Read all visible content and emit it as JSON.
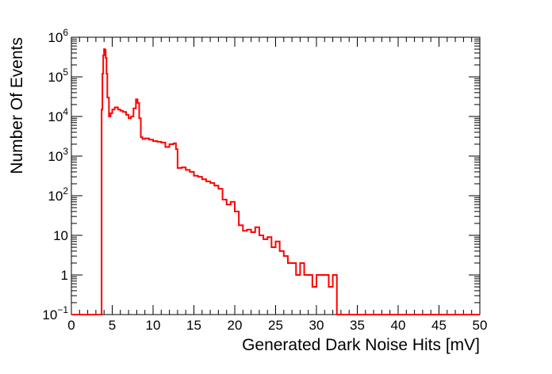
{
  "chart_data": {
    "type": "histogram",
    "title": "",
    "xlabel": "Generated Dark Noise Hits [mV]",
    "ylabel": "Number Of Events",
    "xlim": [
      0,
      50
    ],
    "ylim": [
      0.1,
      1000000
    ],
    "y_scale": "log",
    "grid": false,
    "legend": "none",
    "line_color": "#ff0000",
    "x_ticks": [
      0,
      5,
      10,
      15,
      20,
      25,
      30,
      35,
      40,
      45,
      50
    ],
    "x_tick_labels": [
      "0",
      "5",
      "10",
      "15",
      "20",
      "25",
      "30",
      "35",
      "40",
      "45",
      "50"
    ],
    "y_tick_labels": [
      {
        "value": 0.1,
        "base": "10",
        "exp": "−1"
      },
      {
        "value": 1,
        "base": "1",
        "exp": ""
      },
      {
        "value": 10,
        "base": "10",
        "exp": ""
      },
      {
        "value": 100,
        "base": "10",
        "exp": "2"
      },
      {
        "value": 1000,
        "base": "10",
        "exp": "3"
      },
      {
        "value": 10000,
        "base": "10",
        "exp": "4"
      },
      {
        "value": 100000,
        "base": "10",
        "exp": "5"
      },
      {
        "value": 1000000,
        "base": "10",
        "exp": "6"
      }
    ],
    "series": [
      {
        "x": [
          3.7,
          3.8,
          3.9,
          4.0,
          4.1,
          4.2,
          4.3,
          4.4,
          4.6,
          4.8,
          5.0,
          5.3,
          5.7,
          6.0,
          6.3,
          6.7,
          7.0,
          7.3,
          7.6,
          7.9,
          8.1,
          8.3,
          8.5,
          8.7,
          9.0,
          9.5,
          10.0,
          10.5,
          11.0,
          11.5,
          12.0,
          12.5,
          12.8,
          13.0,
          13.5,
          14.0,
          14.5,
          15.0,
          15.5,
          16.0,
          16.5,
          17.0,
          17.5,
          18.0,
          18.5,
          19.0,
          19.5,
          20.0,
          20.5,
          21.0,
          21.5,
          22.0,
          22.5,
          23.0,
          23.5,
          24.0,
          24.5,
          25.0,
          25.5,
          26.0,
          26.5,
          27.0,
          27.5,
          28.0,
          28.5,
          29.0,
          29.5,
          30.0,
          30.5,
          31.0,
          31.5,
          32.0
        ],
        "values": [
          15000,
          120000,
          350000,
          500000,
          480000,
          300000,
          120000,
          30000,
          10000,
          12000,
          15000,
          17000,
          15000,
          14000,
          13000,
          11000,
          9000,
          10000,
          16000,
          27000,
          22000,
          9000,
          3000,
          2700,
          2800,
          2600,
          2400,
          2300,
          2200,
          1700,
          2000,
          2100,
          1500,
          500,
          520,
          450,
          400,
          320,
          300,
          260,
          230,
          210,
          180,
          150,
          80,
          60,
          70,
          40,
          18,
          13,
          14,
          12,
          16,
          10,
          8,
          9,
          5,
          7,
          4,
          3,
          2,
          2,
          1,
          2,
          1,
          1,
          0.5,
          1,
          1,
          1,
          0.5,
          1
        ]
      }
    ]
  }
}
